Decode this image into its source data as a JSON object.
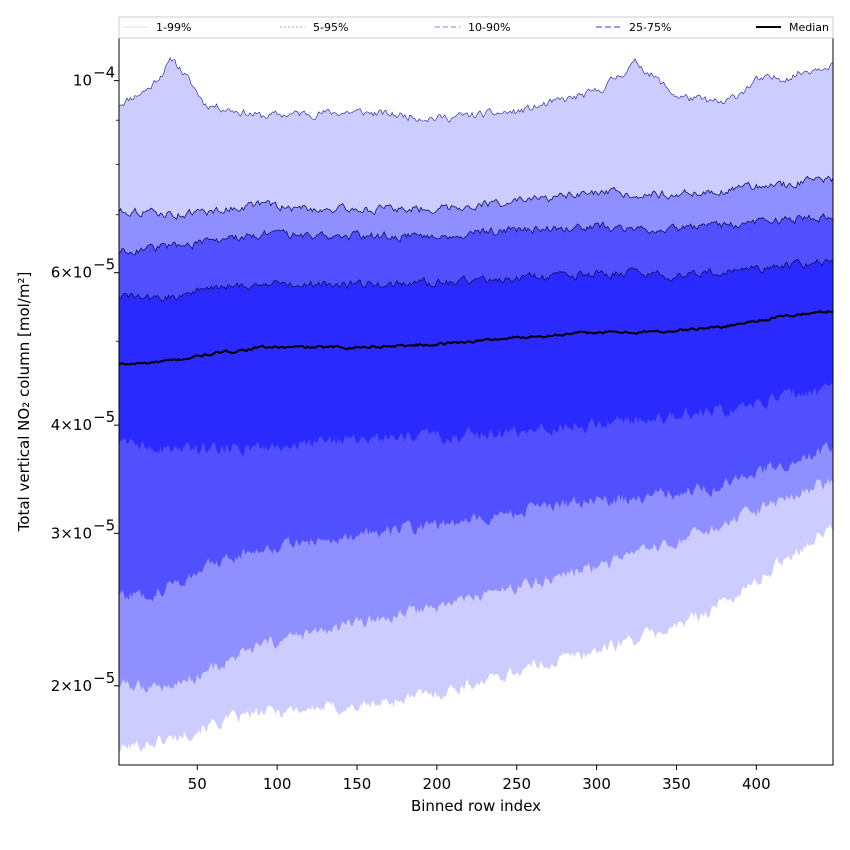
{
  "chart_data": {
    "type": "area",
    "xlabel": "Binned row index",
    "ylabel": "Total vertical NO₂ column [mol/m²]",
    "xlim": [
      1,
      448
    ],
    "ylim": [
      1.62e-05,
      0.000112
    ],
    "yscale": "log",
    "x_ticks": [
      "50",
      "100",
      "150",
      "200",
      "250",
      "300",
      "350",
      "400"
    ],
    "x_tick_values": [
      50,
      100,
      150,
      200,
      250,
      300,
      350,
      400
    ],
    "y_ticks": [
      {
        "value": 2e-05,
        "mantissa": "2×10",
        "exp": "−5"
      },
      {
        "value": 3e-05,
        "mantissa": "3×10",
        "exp": "−5"
      },
      {
        "value": 4e-05,
        "mantissa": "4×10",
        "exp": "−5"
      },
      {
        "value": 6e-05,
        "mantissa": "6×10",
        "exp": "−5"
      },
      {
        "value": 0.0001,
        "mantissa": "10",
        "exp": "−4"
      }
    ],
    "y_minor_ticks": [
      5e-05,
      7e-05,
      8e-05,
      9e-05
    ],
    "grid": false,
    "legend_position": "top",
    "x": [
      1,
      20,
      35,
      55,
      90,
      110,
      150,
      200,
      250,
      300,
      325,
      350,
      380,
      400,
      420,
      448
    ],
    "bands": [
      {
        "name": "1-99%",
        "color": "#ccccff",
        "upper": [
          9.4e-05,
          9.8e-05,
          0.000106,
          9.4e-05,
          9.1e-05,
          9.15e-05,
          9.2e-05,
          9.05e-05,
          9.2e-05,
          9.7e-05,
          0.000105,
          9.6e-05,
          9.4e-05,
          0.0001,
          0.000101,
          0.000105
        ],
        "lower": [
          1.69e-05,
          1.72e-05,
          1.74e-05,
          1.8e-05,
          1.86e-05,
          1.88e-05,
          1.89e-05,
          1.96e-05,
          2.08e-05,
          2.2e-05,
          2.27e-05,
          2.34e-05,
          2.5e-05,
          2.63e-05,
          2.83e-05,
          3.05e-05
        ]
      },
      {
        "name": "5-95%",
        "color": "#8f8fff",
        "upper": [
          7.08e-05,
          7.05e-05,
          7e-05,
          7.05e-05,
          7.2e-05,
          7.12e-05,
          7.1e-05,
          7.12e-05,
          7.25e-05,
          7.4e-05,
          7.4e-05,
          7.4e-05,
          7.45e-05,
          7.55e-05,
          7.6e-05,
          7.7e-05
        ],
        "lower": [
          2e-05,
          2e-05,
          2e-05,
          2.08e-05,
          2.22e-05,
          2.27e-05,
          2.35e-05,
          2.47e-05,
          2.6e-05,
          2.75e-05,
          2.83e-05,
          2.92e-05,
          3.06e-05,
          3.17e-05,
          3.3e-05,
          3.45e-05
        ]
      },
      {
        "name": "10-90%",
        "color": "#5050ff",
        "upper": [
          6.35e-05,
          6.4e-05,
          6.45e-05,
          6.5e-05,
          6.65e-05,
          6.62e-05,
          6.62e-05,
          6.62e-05,
          6.72e-05,
          6.78e-05,
          6.75e-05,
          6.75e-05,
          6.8e-05,
          6.87e-05,
          6.9e-05,
          6.95e-05
        ],
        "lower": [
          2.55e-05,
          2.55e-05,
          2.62e-05,
          2.74e-05,
          2.89e-05,
          2.92e-05,
          2.98e-05,
          3.07e-05,
          3.17e-05,
          3.27e-05,
          3.3e-05,
          3.34e-05,
          3.42e-05,
          3.52e-05,
          3.62e-05,
          3.75e-05
        ]
      },
      {
        "name": "25-75%",
        "color": "#2a2aff",
        "upper": [
          5.65e-05,
          5.6e-05,
          5.62e-05,
          5.75e-05,
          5.82e-05,
          5.83e-05,
          5.82e-05,
          5.84e-05,
          5.92e-05,
          5.98e-05,
          5.98e-05,
          5.95e-05,
          6e-05,
          6.07e-05,
          6.12e-05,
          6.18e-05
        ],
        "lower": [
          3.8e-05,
          3.78e-05,
          3.75e-05,
          3.76e-05,
          3.8e-05,
          3.81e-05,
          3.84e-05,
          3.88e-05,
          3.95e-05,
          4.02e-05,
          4.06e-05,
          4.1e-05,
          4.18e-05,
          4.25e-05,
          4.32e-05,
          4.4e-05
        ]
      }
    ],
    "median": {
      "name": "Median",
      "color": "#000000",
      "values": [
        4.7e-05,
        4.72e-05,
        4.75e-05,
        4.82e-05,
        4.92e-05,
        4.92e-05,
        4.92e-05,
        4.96e-05,
        5.05e-05,
        5.12e-05,
        5.12e-05,
        5.14e-05,
        5.2e-05,
        5.28e-05,
        5.35e-05,
        5.42e-05
      ]
    },
    "legend": [
      {
        "label": "1-99%",
        "color": "#bbbbff",
        "dash": "none",
        "width": 0.6
      },
      {
        "label": "5-95%",
        "color": "#6e6eff",
        "dash": "2,2",
        "width": 0.6
      },
      {
        "label": "10-90%",
        "color": "#7f7fff",
        "dash": "5,3",
        "width": 1
      },
      {
        "label": "25-75%",
        "color": "#3a3aff",
        "dash": "6,3",
        "width": 1
      },
      {
        "label": "Median",
        "color": "#000000",
        "dash": "none",
        "width": 2
      }
    ]
  }
}
